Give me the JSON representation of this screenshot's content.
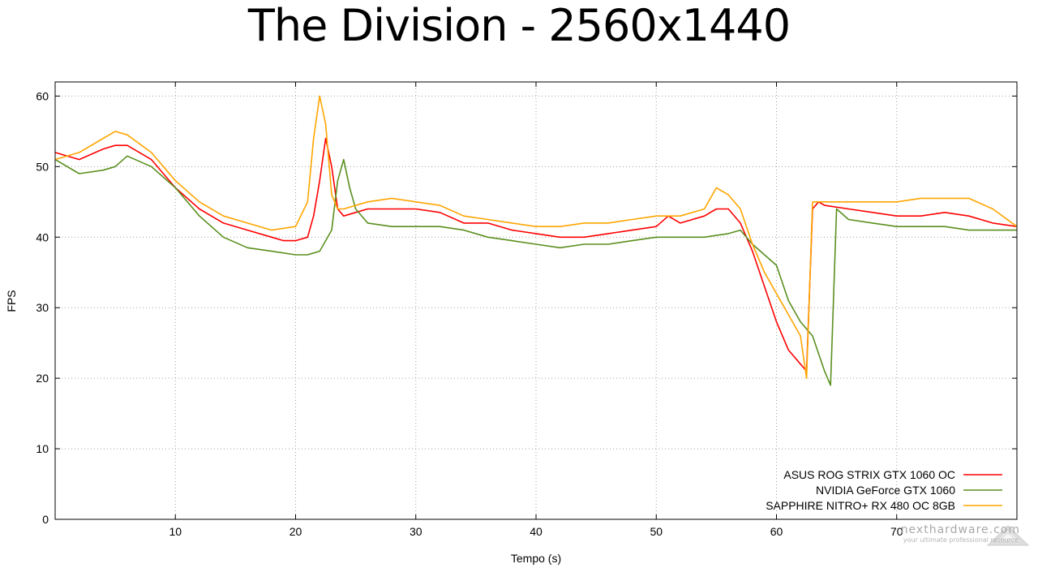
{
  "chart_data": {
    "type": "line",
    "title": "The Division - 2560x1440",
    "xlabel": "Tempo (s)",
    "ylabel": "FPS",
    "xlim": [
      0,
      80
    ],
    "ylim": [
      0,
      62
    ],
    "xticks": [
      10,
      20,
      30,
      40,
      50,
      60,
      70
    ],
    "yticks": [
      0,
      10,
      20,
      30,
      40,
      50,
      60
    ],
    "grid": true,
    "legend_position": "bottom-right",
    "series": [
      {
        "name": "ASUS ROG STRIX GTX 1060 OC",
        "color": "#ff0000",
        "x": [
          0,
          2,
          4,
          5,
          6,
          8,
          10,
          12,
          14,
          16,
          18,
          19,
          20,
          21,
          21.5,
          22,
          22.5,
          23,
          23.5,
          24,
          25,
          26,
          28,
          30,
          32,
          34,
          36,
          38,
          40,
          42,
          44,
          46,
          48,
          50,
          51,
          52,
          54,
          55,
          56,
          57,
          58,
          59,
          60,
          61,
          62,
          62.5,
          63,
          63.5,
          64,
          66,
          68,
          70,
          72,
          74,
          76,
          78,
          80
        ],
        "y": [
          52,
          51,
          52.5,
          53,
          53,
          51,
          47,
          44,
          42,
          41,
          40,
          39.5,
          39.5,
          40,
          43,
          48,
          54,
          50,
          44,
          43,
          43.5,
          44,
          44,
          44,
          43.5,
          42,
          42,
          41,
          40.5,
          40,
          40,
          40.5,
          41,
          41.5,
          43,
          42,
          43,
          44,
          44,
          42,
          38,
          33,
          28,
          24,
          22,
          21,
          44,
          45,
          44.5,
          44,
          43.5,
          43,
          43,
          43.5,
          43,
          42,
          41.5
        ]
      },
      {
        "name": "NVIDIA GeForce GTX 1060",
        "color": "#5a8f1e",
        "x": [
          0,
          2,
          4,
          5,
          6,
          8,
          10,
          12,
          14,
          16,
          18,
          20,
          21,
          22,
          23,
          23.5,
          24,
          24.5,
          25,
          26,
          28,
          30,
          32,
          34,
          36,
          38,
          40,
          42,
          44,
          46,
          48,
          50,
          52,
          54,
          56,
          57,
          58,
          60,
          61,
          62,
          63,
          64,
          64.5,
          65,
          66,
          68,
          70,
          72,
          74,
          76,
          78,
          80
        ],
        "y": [
          51,
          49,
          49.5,
          50,
          51.5,
          50,
          47,
          43,
          40,
          38.5,
          38,
          37.5,
          37.5,
          38,
          41,
          48,
          51,
          47,
          44,
          42,
          41.5,
          41.5,
          41.5,
          41,
          40,
          39.5,
          39,
          38.5,
          39,
          39,
          39.5,
          40,
          40,
          40,
          40.5,
          41,
          39,
          36,
          31,
          28,
          26,
          21,
          19,
          44,
          42.5,
          42,
          41.5,
          41.5,
          41.5,
          41,
          41,
          41
        ]
      },
      {
        "name": "SAPPHIRE NITRO+ RX 480 OC 8GB",
        "color": "#ffa500",
        "x": [
          0,
          2,
          4,
          5,
          6,
          8,
          10,
          12,
          14,
          16,
          18,
          20,
          21,
          21.5,
          22,
          22.5,
          23,
          23.5,
          24,
          26,
          28,
          30,
          32,
          34,
          36,
          38,
          40,
          42,
          44,
          46,
          48,
          50,
          52,
          54,
          55,
          56,
          57,
          58,
          59,
          60,
          61,
          62,
          62.5,
          63,
          63.5,
          64,
          66,
          68,
          70,
          72,
          74,
          76,
          78,
          80
        ],
        "y": [
          51,
          52,
          54,
          55,
          54.5,
          52,
          48,
          45,
          43,
          42,
          41,
          41.5,
          45,
          54,
          60,
          56,
          46,
          44,
          44,
          45,
          45.5,
          45,
          44.5,
          43,
          42.5,
          42,
          41.5,
          41.5,
          42,
          42,
          42.5,
          43,
          43,
          44,
          47,
          46,
          44,
          39,
          35,
          32,
          29,
          26,
          20,
          45,
          45,
          45,
          45,
          45,
          45,
          45.5,
          45.5,
          45.5,
          44,
          41.5
        ]
      }
    ]
  },
  "watermark": {
    "main": "nexthardware.com",
    "sub": "your ultimate professional resource"
  }
}
